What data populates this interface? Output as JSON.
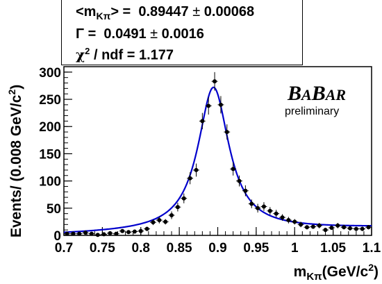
{
  "stats": {
    "mean_label": "<m",
    "mean_sub": "Kπ",
    "mean_rest": "> =",
    "mean_value": "0.89447",
    "pm": "±",
    "mean_error": "0.00068",
    "width_label": "Γ =",
    "width_value": "0.0491",
    "width_error": "0.0016",
    "chi2_label": "χ",
    "chi2_sup": "2",
    "chi2_rest": "/ ndf = 1.177"
  },
  "branding": {
    "b1": "B",
    "a1": "A",
    "b2": "B",
    "a2": "A",
    "r": "R",
    "preliminary": "preliminary"
  },
  "colors": {
    "fit": "#0000cc",
    "points": "#000000"
  },
  "chart_data": {
    "type": "scatter",
    "title": "",
    "xlabel": "m_Kπ(GeV/c²)",
    "ylabel": "Events/ (0.008 GeV/c²)",
    "xlim": [
      0.7,
      1.1
    ],
    "ylim": [
      0,
      310
    ],
    "xticks": [
      "0.7",
      "0.75",
      "0.8",
      "0.85",
      "0.9",
      "0.95",
      "1",
      "1.05",
      "1.1"
    ],
    "yticks": [
      "0",
      "50",
      "100",
      "150",
      "200",
      "250",
      "300"
    ],
    "grid": false,
    "series": [
      {
        "kind": "points_with_errors",
        "x": [
          0.704,
          0.712,
          0.72,
          0.728,
          0.736,
          0.744,
          0.752,
          0.76,
          0.768,
          0.776,
          0.784,
          0.792,
          0.8,
          0.808,
          0.816,
          0.824,
          0.832,
          0.84,
          0.848,
          0.856,
          0.864,
          0.872,
          0.88,
          0.888,
          0.896,
          0.904,
          0.912,
          0.92,
          0.928,
          0.936,
          0.944,
          0.952,
          0.96,
          0.968,
          0.976,
          0.984,
          0.992,
          1.0,
          1.008,
          1.016,
          1.024,
          1.032,
          1.04,
          1.048,
          1.056,
          1.064,
          1.072,
          1.08,
          1.088,
          1.096
        ],
        "y": [
          3,
          3,
          3,
          5,
          3,
          1,
          2,
          4,
          3,
          8,
          6,
          7,
          8,
          12,
          24,
          28,
          25,
          37,
          52,
          68,
          105,
          120,
          210,
          238,
          283,
          240,
          190,
          122,
          100,
          82,
          58,
          50,
          53,
          45,
          40,
          33,
          28,
          25,
          20,
          15,
          16,
          18,
          10,
          14,
          18,
          15,
          13,
          12,
          12,
          15
        ],
        "err": [
          2,
          2,
          2,
          2,
          2,
          1,
          2,
          2,
          2,
          3,
          3,
          3,
          3,
          4,
          5,
          6,
          5,
          7,
          8,
          9,
          11,
          12,
          15,
          16,
          17,
          16,
          14,
          12,
          10,
          10,
          8,
          8,
          8,
          7,
          7,
          6,
          6,
          5,
          5,
          4,
          4,
          5,
          4,
          4,
          5,
          4,
          4,
          4,
          4,
          4
        ]
      },
      {
        "kind": "fit_curve",
        "model": "breit_wigner",
        "mass": 0.89447,
        "width": 0.0491,
        "peak": 272,
        "background": [
          1.5,
          14
        ]
      }
    ]
  }
}
